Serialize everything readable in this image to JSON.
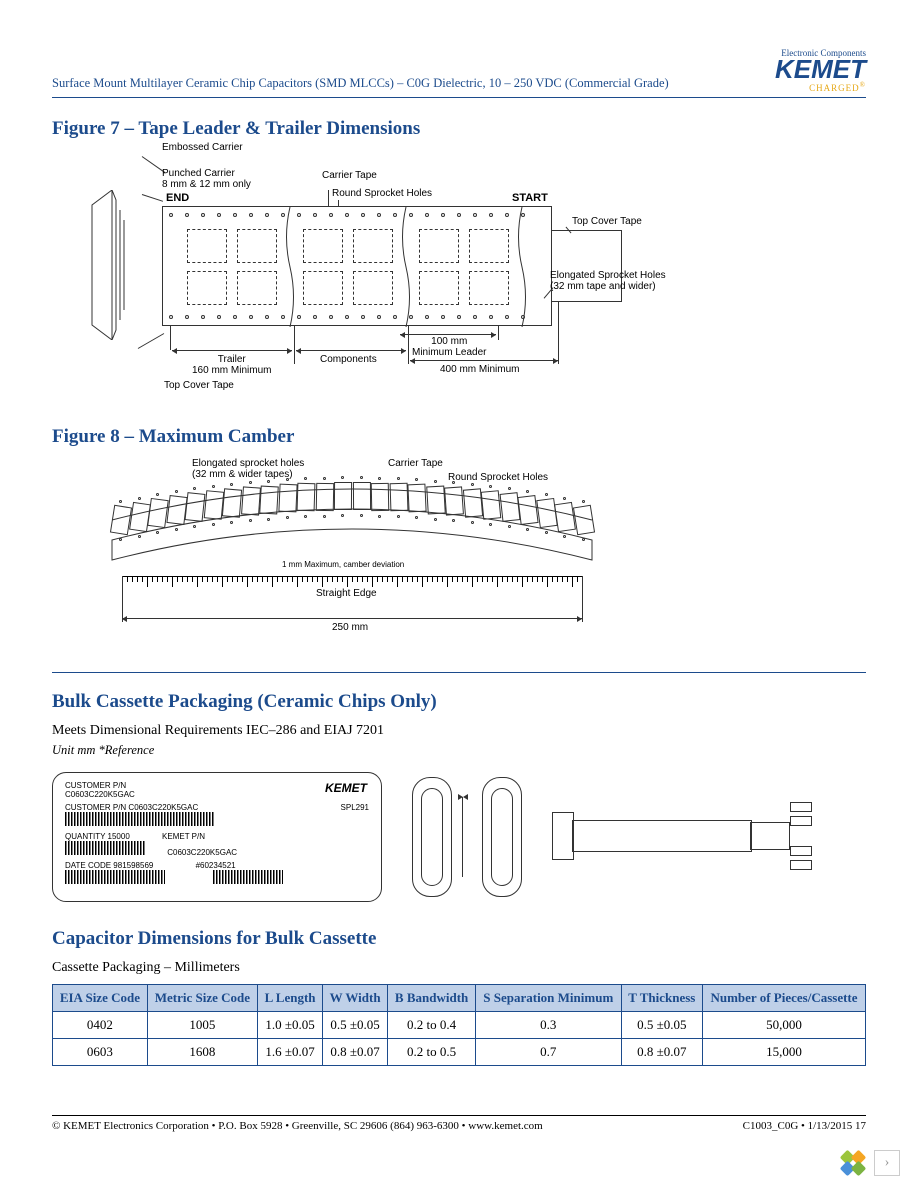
{
  "page": {
    "doc_title": "Surface Mount Multilayer Ceramic Chip Capacitors (SMD MLCCs) – C0G Dielectric, 10 – 250 VDC (Commercial Grade)",
    "footer_left": "© KEMET Electronics Corporation • P.O. Box 5928 • Greenville, SC 29606 (864) 963-6300 • www.kemet.com",
    "footer_right": "C1003_C0G • 1/13/2015 17"
  },
  "logo": {
    "tagline": "Electronic Components",
    "brand": "KEMET",
    "sub": "CHARGED",
    "brand_color": "#1c4b8c",
    "accent_color": "#e6a817"
  },
  "fig7": {
    "heading": "Figure 7 – Tape Leader & Trailer Dimensions",
    "labels": {
      "embossed": "Embossed Carrier",
      "punched": "Punched Carrier\n8 mm & 12 mm only",
      "carrier_tape": "Carrier Tape",
      "round_sprocket": "Round Sprocket Holes",
      "start": "START",
      "end": "END",
      "top_cover1": "Top Cover Tape",
      "top_cover2": "Top Cover Tape",
      "elongated": "Elongated Sprocket Holes\n(32 mm tape and wider)",
      "trailer": "Trailer\n160 mm Minimum",
      "components": "Components",
      "leader_100": "100 mm\nMinimum Leader",
      "leader_400": "400 mm Minimum"
    }
  },
  "fig8": {
    "heading": "Figure 8 – Maximum Camber",
    "labels": {
      "elongated": "Elongated sprocket holes\n(32 mm & wider tapes)",
      "carrier_tape": "Carrier Tape",
      "round_sprocket": "Round Sprocket Holes",
      "max_camber": "1 mm Maximum, camber deviation",
      "straight_edge": "Straight Edge",
      "span": "250 mm"
    }
  },
  "bulk": {
    "heading": "Bulk Cassette Packaging (Ceramic Chips Only)",
    "subtext": "Meets Dimensional Requirements IEC–286 and EIAJ 7201",
    "unit_note": "Unit mm *Reference",
    "cassette_label": {
      "brand": "KEMET",
      "cust_pn_lbl": "CUSTOMER P/N",
      "cust_pn": "C0603C220K5GAC",
      "cust_pn_lbl2": "CUSTOMER P/N C0603C220K5GAC",
      "spl": "SPL291",
      "qty_lbl": "QUANTITY 15000",
      "kemet_pn_lbl": "KEMET P/N",
      "kemet_pn": "C0603C220K5GAC",
      "date_lbl": "DATE CODE 981598569",
      "lot": "#60234521"
    }
  },
  "dim_table": {
    "heading": "Capacitor Dimensions for Bulk Cassette",
    "subtext": "Cassette Packaging – Millimeters",
    "columns": [
      "EIA Size Code",
      "Metric Size Code",
      "L Length",
      "W Width",
      "B Bandwidth",
      "S Separation Minimum",
      "T Thickness",
      "Number of Pieces/Cassette"
    ],
    "rows": [
      [
        "0402",
        "1005",
        "1.0 ±0.05",
        "0.5 ±0.05",
        "0.2 to 0.4",
        "0.3",
        "0.5 ±0.05",
        "50,000"
      ],
      [
        "0603",
        "1608",
        "1.6 ±0.07",
        "0.8 ±0.07",
        "0.2 to 0.5",
        "0.7",
        "0.8 ±0.07",
        "15,000"
      ]
    ],
    "header_bg": "#bfd0e8",
    "border_color": "#1c4b8c",
    "header_text_color": "#1c4b8c"
  },
  "corner_logo_colors": [
    "#9cc53c",
    "#f5a623",
    "#4a90d9",
    "#7cb342"
  ]
}
